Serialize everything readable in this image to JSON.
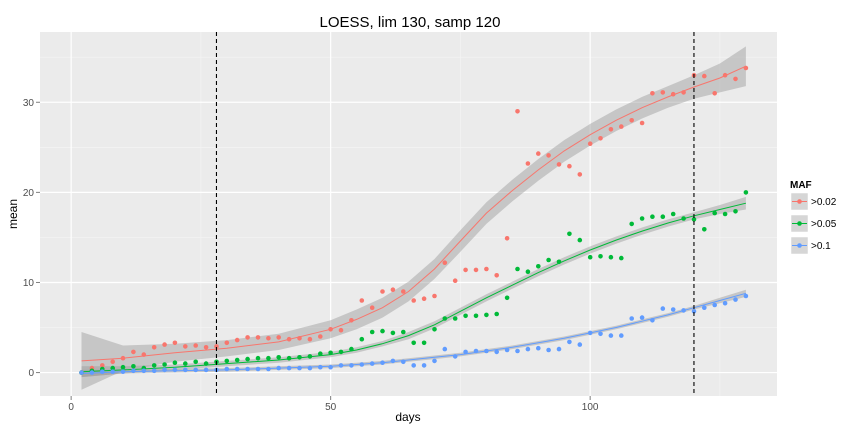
{
  "chart_data": {
    "type": "scatter",
    "title": "LOESS, lim 130, samp 120",
    "xlabel": "days",
    "ylabel": "mean",
    "xlim": [
      -6,
      136
    ],
    "ylim": [
      -2.6,
      37.8
    ],
    "xticks": [
      0,
      50,
      100
    ],
    "yticks": [
      0,
      10,
      20,
      30
    ],
    "grid": true,
    "vlines": [
      28,
      120
    ],
    "legend": {
      "title": "MAF",
      "placement": "right"
    },
    "series": [
      {
        "name": ">0.02",
        "color": "#F8766D",
        "points": [
          [
            2,
            0
          ],
          [
            4,
            0.5
          ],
          [
            6,
            0.8
          ],
          [
            8,
            1.2
          ],
          [
            10,
            1.6
          ],
          [
            12,
            2.3
          ],
          [
            14,
            2.0
          ],
          [
            16,
            2.8
          ],
          [
            18,
            3.1
          ],
          [
            20,
            3.3
          ],
          [
            22,
            2.9
          ],
          [
            24,
            3.0
          ],
          [
            26,
            2.8
          ],
          [
            28,
            2.9
          ],
          [
            30,
            3.3
          ],
          [
            32,
            3.6
          ],
          [
            34,
            3.9
          ],
          [
            36,
            3.9
          ],
          [
            38,
            3.8
          ],
          [
            40,
            3.9
          ],
          [
            42,
            3.7
          ],
          [
            44,
            3.8
          ],
          [
            46,
            3.7
          ],
          [
            48,
            4.0
          ],
          [
            50,
            4.8
          ],
          [
            52,
            4.7
          ],
          [
            54,
            5.8
          ],
          [
            56,
            8.0
          ],
          [
            58,
            7.2
          ],
          [
            60,
            9.0
          ],
          [
            62,
            9.2
          ],
          [
            64,
            9.0
          ],
          [
            66,
            8.0
          ],
          [
            68,
            8.2
          ],
          [
            70,
            8.5
          ],
          [
            72,
            12.2
          ],
          [
            74,
            10.2
          ],
          [
            76,
            11.4
          ],
          [
            78,
            11.4
          ],
          [
            80,
            11.5
          ],
          [
            82,
            10.8
          ],
          [
            84,
            14.9
          ],
          [
            86,
            29.0
          ],
          [
            88,
            23.2
          ],
          [
            90,
            24.3
          ],
          [
            92,
            24.1
          ],
          [
            94,
            23.1
          ],
          [
            96,
            22.9
          ],
          [
            98,
            22.0
          ],
          [
            100,
            25.4
          ],
          [
            102,
            26.0
          ],
          [
            104,
            27.0
          ],
          [
            106,
            27.3
          ],
          [
            108,
            28.0
          ],
          [
            110,
            27.7
          ],
          [
            112,
            31.0
          ],
          [
            114,
            31.1
          ],
          [
            116,
            30.9
          ],
          [
            118,
            31.1
          ],
          [
            120,
            33.0
          ],
          [
            122,
            32.9
          ],
          [
            124,
            31.0
          ],
          [
            126,
            33.0
          ],
          [
            128,
            32.6
          ],
          [
            130,
            33.8
          ]
        ],
        "fit": [
          [
            2,
            1.3
          ],
          [
            10,
            1.6
          ],
          [
            20,
            2.2
          ],
          [
            30,
            2.7
          ],
          [
            40,
            3.4
          ],
          [
            50,
            4.8
          ],
          [
            55,
            5.9
          ],
          [
            60,
            7.2
          ],
          [
            65,
            9.0
          ],
          [
            70,
            11.5
          ],
          [
            75,
            14.6
          ],
          [
            80,
            17.7
          ],
          [
            85,
            20.2
          ],
          [
            90,
            22.5
          ],
          [
            95,
            24.6
          ],
          [
            100,
            26.4
          ],
          [
            105,
            28.0
          ],
          [
            110,
            29.4
          ],
          [
            115,
            30.6
          ],
          [
            120,
            31.7
          ],
          [
            125,
            32.7
          ],
          [
            130,
            34.0
          ]
        ],
        "band": [
          3.2,
          1.4,
          1.0,
          0.9,
          0.9,
          1.0,
          1.1,
          1.1,
          1.1,
          1.1,
          1.2,
          1.2,
          1.2,
          1.2,
          1.2,
          1.2,
          1.2,
          1.2,
          1.2,
          1.3,
          1.6,
          2.2
        ]
      },
      {
        "name": ">0.05",
        "color": "#00BA38",
        "points": [
          [
            2,
            0
          ],
          [
            4,
            0.2
          ],
          [
            6,
            0.4
          ],
          [
            8,
            0.5
          ],
          [
            10,
            0.6
          ],
          [
            12,
            0.7
          ],
          [
            14,
            0.5
          ],
          [
            16,
            0.8
          ],
          [
            18,
            0.9
          ],
          [
            20,
            1.1
          ],
          [
            22,
            1.0
          ],
          [
            24,
            1.2
          ],
          [
            26,
            1.0
          ],
          [
            28,
            1.2
          ],
          [
            30,
            1.3
          ],
          [
            32,
            1.4
          ],
          [
            34,
            1.5
          ],
          [
            36,
            1.6
          ],
          [
            38,
            1.6
          ],
          [
            40,
            1.7
          ],
          [
            42,
            1.6
          ],
          [
            44,
            1.7
          ],
          [
            46,
            1.8
          ],
          [
            48,
            2.1
          ],
          [
            50,
            2.2
          ],
          [
            52,
            2.3
          ],
          [
            54,
            2.6
          ],
          [
            56,
            3.7
          ],
          [
            58,
            4.5
          ],
          [
            60,
            4.6
          ],
          [
            62,
            4.4
          ],
          [
            64,
            4.5
          ],
          [
            66,
            3.3
          ],
          [
            68,
            3.3
          ],
          [
            70,
            4.8
          ],
          [
            72,
            6.0
          ],
          [
            74,
            6.0
          ],
          [
            76,
            6.3
          ],
          [
            78,
            6.3
          ],
          [
            80,
            6.4
          ],
          [
            82,
            6.5
          ],
          [
            84,
            8.3
          ],
          [
            86,
            11.5
          ],
          [
            88,
            11.2
          ],
          [
            90,
            11.8
          ],
          [
            92,
            12.5
          ],
          [
            94,
            12.3
          ],
          [
            96,
            15.4
          ],
          [
            98,
            14.7
          ],
          [
            100,
            12.8
          ],
          [
            102,
            12.9
          ],
          [
            104,
            12.8
          ],
          [
            106,
            12.7
          ],
          [
            108,
            16.5
          ],
          [
            110,
            17.1
          ],
          [
            112,
            17.3
          ],
          [
            114,
            17.3
          ],
          [
            116,
            17.6
          ],
          [
            118,
            17.1
          ],
          [
            120,
            17.0
          ],
          [
            122,
            15.9
          ],
          [
            124,
            17.7
          ],
          [
            126,
            17.6
          ],
          [
            128,
            17.9
          ],
          [
            130,
            20.0
          ]
        ],
        "fit": [
          [
            2,
            0.1
          ],
          [
            10,
            0.3
          ],
          [
            20,
            0.6
          ],
          [
            30,
            1.0
          ],
          [
            40,
            1.4
          ],
          [
            50,
            2.0
          ],
          [
            55,
            2.5
          ],
          [
            60,
            3.2
          ],
          [
            65,
            4.1
          ],
          [
            70,
            5.3
          ],
          [
            75,
            6.8
          ],
          [
            80,
            8.3
          ],
          [
            85,
            9.7
          ],
          [
            90,
            11.1
          ],
          [
            95,
            12.4
          ],
          [
            100,
            13.6
          ],
          [
            105,
            14.7
          ],
          [
            110,
            15.7
          ],
          [
            115,
            16.6
          ],
          [
            120,
            17.4
          ],
          [
            125,
            18.1
          ],
          [
            130,
            18.8
          ]
        ],
        "band": [
          0.6,
          0.4,
          0.3,
          0.3,
          0.3,
          0.3,
          0.3,
          0.3,
          0.4,
          0.4,
          0.4,
          0.4,
          0.4,
          0.4,
          0.4,
          0.4,
          0.4,
          0.4,
          0.4,
          0.4,
          0.5,
          0.7
        ]
      },
      {
        "name": ">0.1",
        "color": "#619CFF",
        "points": [
          [
            2,
            0
          ],
          [
            4,
            0
          ],
          [
            6,
            0.1
          ],
          [
            8,
            0.1
          ],
          [
            10,
            0.1
          ],
          [
            12,
            0.2
          ],
          [
            14,
            0.2
          ],
          [
            16,
            0.2
          ],
          [
            18,
            0.3
          ],
          [
            20,
            0.3
          ],
          [
            22,
            0.3
          ],
          [
            24,
            0.3
          ],
          [
            26,
            0.3
          ],
          [
            28,
            0.3
          ],
          [
            30,
            0.4
          ],
          [
            32,
            0.4
          ],
          [
            34,
            0.4
          ],
          [
            36,
            0.4
          ],
          [
            38,
            0.4
          ],
          [
            40,
            0.5
          ],
          [
            42,
            0.5
          ],
          [
            44,
            0.5
          ],
          [
            46,
            0.5
          ],
          [
            48,
            0.6
          ],
          [
            50,
            0.6
          ],
          [
            52,
            0.8
          ],
          [
            54,
            0.8
          ],
          [
            56,
            0.9
          ],
          [
            58,
            1.0
          ],
          [
            60,
            1.1
          ],
          [
            62,
            1.3
          ],
          [
            64,
            1.2
          ],
          [
            66,
            0.8
          ],
          [
            68,
            0.8
          ],
          [
            70,
            1.3
          ],
          [
            72,
            2.6
          ],
          [
            74,
            1.8
          ],
          [
            76,
            2.3
          ],
          [
            78,
            2.4
          ],
          [
            80,
            2.4
          ],
          [
            82,
            2.3
          ],
          [
            84,
            2.5
          ],
          [
            86,
            2.4
          ],
          [
            88,
            2.6
          ],
          [
            90,
            2.7
          ],
          [
            92,
            2.5
          ],
          [
            94,
            2.6
          ],
          [
            96,
            3.4
          ],
          [
            98,
            3.1
          ],
          [
            100,
            4.4
          ],
          [
            102,
            4.3
          ],
          [
            104,
            4.1
          ],
          [
            106,
            4.1
          ],
          [
            108,
            6.0
          ],
          [
            110,
            6.1
          ],
          [
            112,
            5.8
          ],
          [
            114,
            7.1
          ],
          [
            116,
            7.0
          ],
          [
            118,
            6.9
          ],
          [
            120,
            6.8
          ],
          [
            122,
            7.2
          ],
          [
            124,
            7.5
          ],
          [
            126,
            7.7
          ],
          [
            128,
            8.1
          ],
          [
            130,
            8.5
          ]
        ],
        "fit": [
          [
            2,
            -0.1
          ],
          [
            10,
            0.1
          ],
          [
            20,
            0.2
          ],
          [
            30,
            0.3
          ],
          [
            40,
            0.5
          ],
          [
            50,
            0.7
          ],
          [
            55,
            0.9
          ],
          [
            60,
            1.1
          ],
          [
            65,
            1.4
          ],
          [
            70,
            1.7
          ],
          [
            75,
            2.0
          ],
          [
            80,
            2.4
          ],
          [
            85,
            2.8
          ],
          [
            90,
            3.3
          ],
          [
            95,
            3.8
          ],
          [
            100,
            4.4
          ],
          [
            105,
            5.0
          ],
          [
            110,
            5.7
          ],
          [
            115,
            6.4
          ],
          [
            120,
            7.2
          ],
          [
            125,
            8.0
          ],
          [
            130,
            8.8
          ]
        ],
        "band": [
          0.4,
          0.2,
          0.2,
          0.2,
          0.2,
          0.2,
          0.2,
          0.2,
          0.2,
          0.2,
          0.2,
          0.2,
          0.2,
          0.2,
          0.2,
          0.2,
          0.2,
          0.2,
          0.2,
          0.2,
          0.3,
          0.4
        ]
      }
    ]
  }
}
